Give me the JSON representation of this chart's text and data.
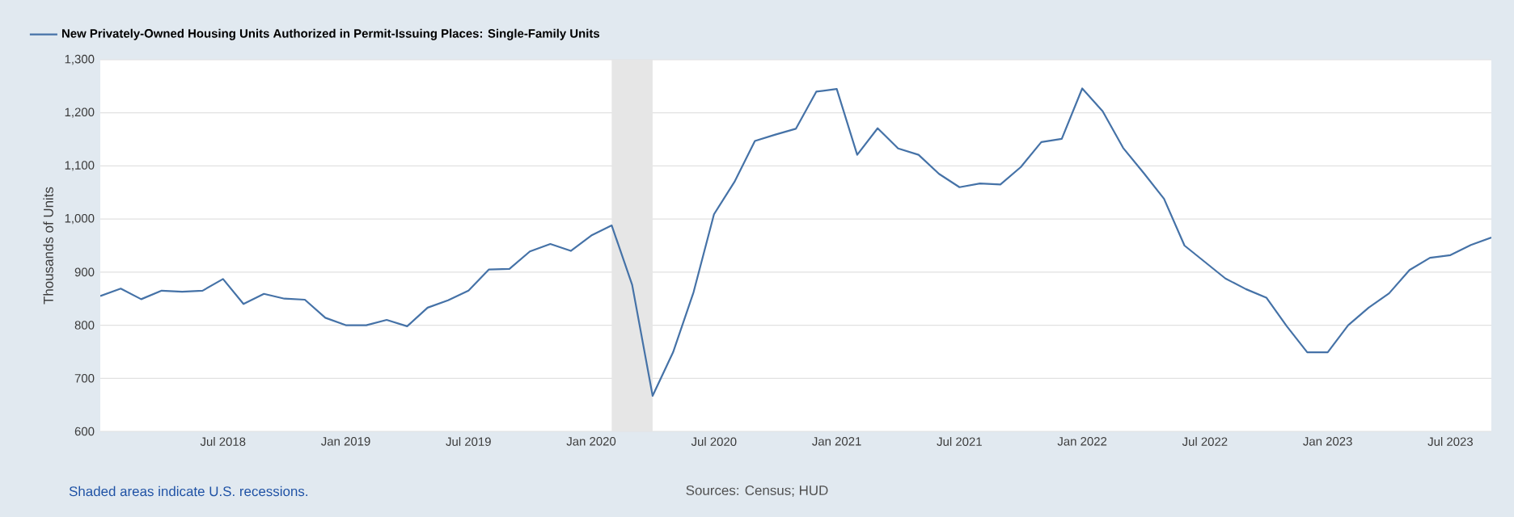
{
  "chart_data": {
    "type": "line",
    "ylabel": "Thousands of Units",
    "legend": "top left",
    "grid": "y",
    "line_style": "solid",
    "marker": "none",
    "xlim": [
      "2018-01",
      "2023-09"
    ],
    "xticks": [
      {
        "value": "2018-07",
        "label": "Jul 2018"
      },
      {
        "value": "2019-01",
        "label": "Jan 2019"
      },
      {
        "value": "2019-07",
        "label": "Jul 2019"
      },
      {
        "value": "2020-01",
        "label": "Jan 2020"
      },
      {
        "value": "2020-07",
        "label": "Jul 2020"
      },
      {
        "value": "2021-01",
        "label": "Jan 2021"
      },
      {
        "value": "2021-07",
        "label": "Jul 2021"
      },
      {
        "value": "2022-01",
        "label": "Jan 2022"
      },
      {
        "value": "2022-07",
        "label": "Jul 2022"
      },
      {
        "value": "2023-01",
        "label": "Jan 2023"
      },
      {
        "value": "2023-07",
        "label": "Jul 2023"
      }
    ],
    "ylim": [
      600,
      1300
    ],
    "yticks": [
      600,
      700,
      800,
      900,
      {
        "value": 1000,
        "label": "1,000"
      },
      {
        "value": 1100,
        "label": "1,100"
      },
      {
        "value": 1200,
        "label": "1,200"
      },
      {
        "value": 1300,
        "label": "1,300"
      }
    ],
    "bands": [
      {
        "axis": "x",
        "from": "2020-02",
        "to": "2020-04",
        "color": "#e6e6e6"
      }
    ],
    "annotations": [
      "Shaded areas indicate U.S. recessions.",
      "Sources: Census; HUD"
    ],
    "x": [
      "2018-01",
      "2018-02",
      "2018-03",
      "2018-04",
      "2018-05",
      "2018-06",
      "2018-07",
      "2018-08",
      "2018-09",
      "2018-10",
      "2018-11",
      "2018-12",
      "2019-01",
      "2019-02",
      "2019-03",
      "2019-04",
      "2019-05",
      "2019-06",
      "2019-07",
      "2019-08",
      "2019-09",
      "2019-10",
      "2019-11",
      "2019-12",
      "2020-01",
      "2020-02",
      "2020-03",
      "2020-04",
      "2020-05",
      "2020-06",
      "2020-07",
      "2020-08",
      "2020-09",
      "2020-10",
      "2020-11",
      "2020-12",
      "2021-01",
      "2021-02",
      "2021-03",
      "2021-04",
      "2021-05",
      "2021-06",
      "2021-07",
      "2021-08",
      "2021-09",
      "2021-10",
      "2021-11",
      "2021-12",
      "2022-01",
      "2022-02",
      "2022-03",
      "2022-04",
      "2022-05",
      "2022-06",
      "2022-07",
      "2022-08",
      "2022-09",
      "2022-10",
      "2022-11",
      "2022-12",
      "2023-01",
      "2023-02",
      "2023-03",
      "2023-04",
      "2023-05",
      "2023-06",
      "2023-07",
      "2023-08",
      "2023-09"
    ],
    "series": [
      {
        "name": "New Privately-Owned Housing Units Authorized in Permit-Issuing Places: Single-Family Units",
        "color": "#4572a7",
        "values": [
          855,
          869,
          849,
          865,
          863,
          865,
          887,
          840,
          859,
          850,
          848,
          814,
          800,
          800,
          810,
          798,
          833,
          847,
          865,
          905,
          906,
          939,
          953,
          940,
          969,
          988,
          876,
          667,
          749,
          862,
          1009,
          1070,
          1147,
          1159,
          1170,
          1240,
          1245,
          1121,
          1171,
          1133,
          1121,
          1085,
          1060,
          1067,
          1065,
          1098,
          1145,
          1151,
          1246,
          1203,
          1134,
          1087,
          1038,
          950,
          919,
          888,
          868,
          852,
          798,
          749,
          749,
          800,
          833,
          860,
          904,
          927,
          932,
          951,
          965
        ]
      }
    ]
  }
}
